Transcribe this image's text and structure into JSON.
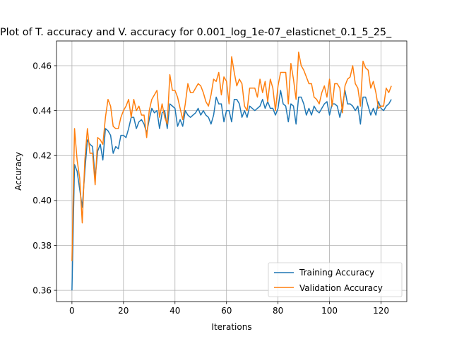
{
  "chart_data": {
    "type": "line",
    "title": "Plot of T. accuracy and V. accuracy for 0.001_log_1e-07_elasticnet_0.1_5_25_",
    "xlabel": "Iterations",
    "ylabel": "Accuracy",
    "xlim": [
      -6,
      130
    ],
    "ylim": [
      0.355,
      0.471
    ],
    "x_ticks": [
      0,
      20,
      40,
      60,
      80,
      100,
      120
    ],
    "x_tick_labels": [
      "0",
      "20",
      "40",
      "60",
      "80",
      "100",
      "120"
    ],
    "y_ticks": [
      0.36,
      0.38,
      0.4,
      0.42,
      0.44,
      0.46
    ],
    "y_tick_labels": [
      "0.36",
      "0.38",
      "0.40",
      "0.42",
      "0.44",
      "0.46"
    ],
    "grid": true,
    "legend_position": "lower-right",
    "series": [
      {
        "name": "Training Accuracy",
        "color": "#1f77b4",
        "values": [
          0.36,
          0.416,
          0.413,
          0.405,
          0.397,
          0.413,
          0.427,
          0.425,
          0.424,
          0.41,
          0.422,
          0.425,
          0.418,
          0.432,
          0.431,
          0.429,
          0.421,
          0.424,
          0.423,
          0.429,
          0.429,
          0.428,
          0.432,
          0.437,
          0.437,
          0.432,
          0.435,
          0.436,
          0.434,
          0.43,
          0.436,
          0.441,
          0.439,
          0.44,
          0.432,
          0.439,
          0.44,
          0.432,
          0.443,
          0.442,
          0.441,
          0.433,
          0.436,
          0.433,
          0.44,
          0.438,
          0.437,
          0.438,
          0.439,
          0.441,
          0.438,
          0.44,
          0.438,
          0.437,
          0.434,
          0.438,
          0.446,
          0.443,
          0.443,
          0.435,
          0.44,
          0.44,
          0.435,
          0.445,
          0.445,
          0.443,
          0.437,
          0.44,
          0.437,
          0.442,
          0.441,
          0.44,
          0.441,
          0.442,
          0.445,
          0.441,
          0.444,
          0.441,
          0.441,
          0.438,
          0.441,
          0.449,
          0.443,
          0.442,
          0.435,
          0.443,
          0.442,
          0.434,
          0.446,
          0.446,
          0.443,
          0.438,
          0.441,
          0.438,
          0.442,
          0.44,
          0.439,
          0.441,
          0.443,
          0.444,
          0.438,
          0.443,
          0.443,
          0.442,
          0.437,
          0.442,
          0.449,
          0.443,
          0.443,
          0.442,
          0.44,
          0.442,
          0.434,
          0.446,
          0.446,
          0.442,
          0.438,
          0.441,
          0.438,
          0.444,
          0.441,
          0.44,
          0.442,
          0.443,
          0.445
        ]
      },
      {
        "name": "Validation Accuracy",
        "color": "#ff7f0e",
        "values": [
          0.373,
          0.432,
          0.418,
          0.41,
          0.39,
          0.418,
          0.432,
          0.421,
          0.421,
          0.407,
          0.428,
          0.427,
          0.425,
          0.437,
          0.445,
          0.442,
          0.433,
          0.432,
          0.432,
          0.437,
          0.44,
          0.442,
          0.445,
          0.437,
          0.445,
          0.44,
          0.442,
          0.438,
          0.438,
          0.428,
          0.44,
          0.445,
          0.447,
          0.449,
          0.437,
          0.443,
          0.437,
          0.434,
          0.456,
          0.449,
          0.449,
          0.446,
          0.441,
          0.436,
          0.443,
          0.452,
          0.448,
          0.448,
          0.45,
          0.452,
          0.451,
          0.448,
          0.444,
          0.442,
          0.447,
          0.454,
          0.453,
          0.457,
          0.447,
          0.455,
          0.453,
          0.443,
          0.464,
          0.457,
          0.451,
          0.454,
          0.452,
          0.442,
          0.44,
          0.45,
          0.45,
          0.45,
          0.446,
          0.454,
          0.448,
          0.453,
          0.444,
          0.454,
          0.45,
          0.44,
          0.451,
          0.457,
          0.457,
          0.457,
          0.443,
          0.461,
          0.454,
          0.445,
          0.466,
          0.46,
          0.458,
          0.455,
          0.452,
          0.452,
          0.446,
          0.445,
          0.443,
          0.448,
          0.451,
          0.446,
          0.454,
          0.442,
          0.452,
          0.452,
          0.45,
          0.439,
          0.451,
          0.454,
          0.455,
          0.46,
          0.452,
          0.45,
          0.442,
          0.462,
          0.459,
          0.458,
          0.45,
          0.453,
          0.448,
          0.441,
          0.442,
          0.442,
          0.45,
          0.448,
          0.451
        ]
      }
    ]
  }
}
